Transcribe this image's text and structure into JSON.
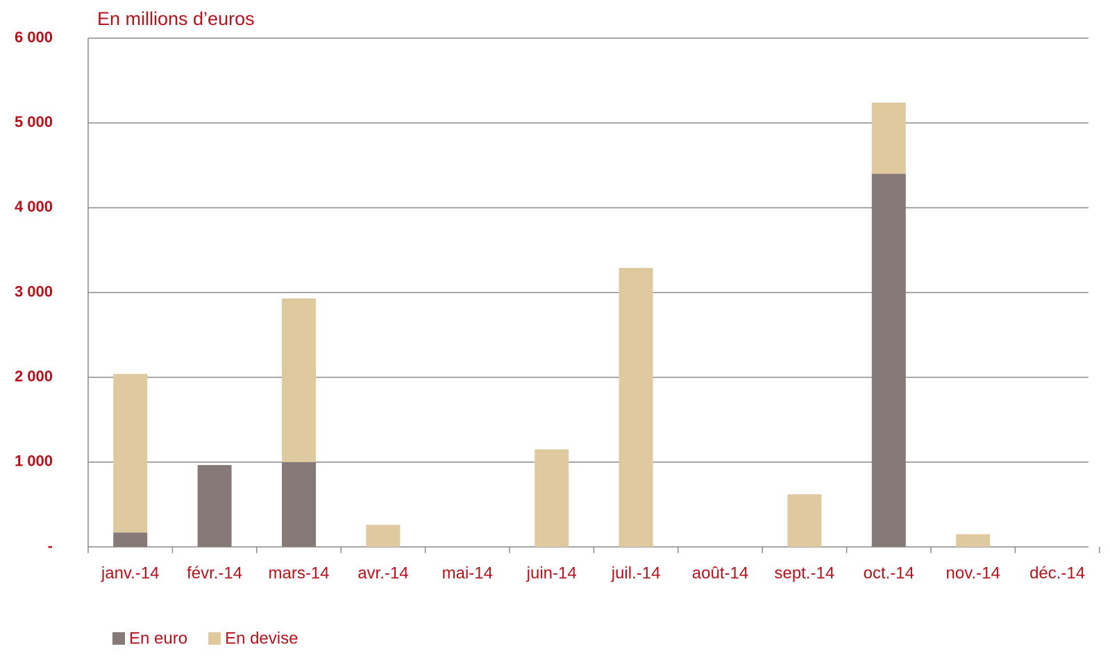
{
  "chart_data": {
    "type": "stacked_bar",
    "title": "En millions d’euros",
    "categories": [
      "janv.-14",
      "févr.-14",
      "mars-14",
      "avr.-14",
      "mai-14",
      "juin-14",
      "juil.-14",
      "août-14",
      "sept.-14",
      "oct.-14",
      "nov.-14",
      "déc.-14"
    ],
    "series": [
      {
        "name": "En euro",
        "color": "#857a77",
        "values": [
          170,
          965,
          1000,
          0,
          0,
          0,
          0,
          0,
          0,
          4400,
          0,
          0
        ]
      },
      {
        "name": "En devise",
        "color": "#dfc99f",
        "values": [
          1870,
          0,
          1930,
          260,
          0,
          1150,
          3290,
          0,
          620,
          840,
          150,
          0
        ]
      }
    ],
    "ylim": [
      0,
      6000
    ],
    "yticks": [
      {
        "value": 0,
        "label": "-"
      },
      {
        "value": 1000,
        "label": "1 000"
      },
      {
        "value": 2000,
        "label": "2 000"
      },
      {
        "value": 3000,
        "label": "3 000"
      },
      {
        "value": 4000,
        "label": "4 000"
      },
      {
        "value": 5000,
        "label": "5 000"
      },
      {
        "value": 6000,
        "label": "6 000"
      }
    ],
    "grid": true
  }
}
